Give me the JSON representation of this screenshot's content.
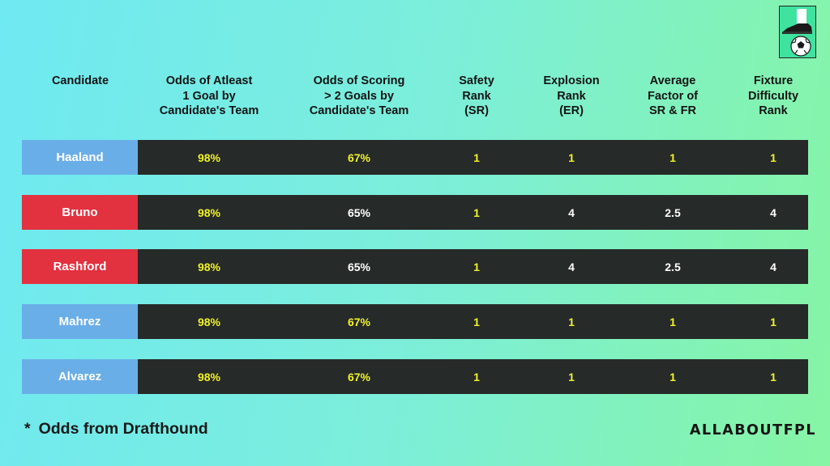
{
  "headers": [
    "Candidate",
    "Odds of Atleast\n1 Goal by\nCandidate's Team",
    "Odds of Scoring\n> 2 Goals by\nCandidate's Team",
    "Safety\nRank\n(SR)",
    "Explosion\nRank\n(ER)",
    "Average\nFactor of\nSR & FR",
    "Fixture\nDifficulty\nRank"
  ],
  "rows": [
    {
      "name": "Haaland",
      "name_color": "blue",
      "odds1": "98%",
      "odds2": "67%",
      "odds2_color": "yellow",
      "sr": "1",
      "sr_color": "yellow",
      "er": "1",
      "er_color": "yellow",
      "avg": "1",
      "avg_color": "yellow",
      "fdr": "1",
      "fdr_color": "yellow"
    },
    {
      "name": "Bruno",
      "name_color": "red",
      "odds1": "98%",
      "odds2": "65%",
      "odds2_color": "white",
      "sr": "1",
      "sr_color": "yellow",
      "er": "4",
      "er_color": "white",
      "avg": "2.5",
      "avg_color": "white",
      "fdr": "4",
      "fdr_color": "white"
    },
    {
      "name": "Rashford",
      "name_color": "red",
      "odds1": "98%",
      "odds2": "65%",
      "odds2_color": "white",
      "sr": "1",
      "sr_color": "yellow",
      "er": "4",
      "er_color": "white",
      "avg": "2.5",
      "avg_color": "white",
      "fdr": "4",
      "fdr_color": "white"
    },
    {
      "name": "Mahrez",
      "name_color": "blue",
      "odds1": "98%",
      "odds2": "67%",
      "odds2_color": "yellow",
      "sr": "1",
      "sr_color": "yellow",
      "er": "1",
      "er_color": "yellow",
      "avg": "1",
      "avg_color": "yellow",
      "fdr": "1",
      "fdr_color": "yellow"
    },
    {
      "name": "Alvarez",
      "name_color": "blue",
      "odds1": "98%",
      "odds2": "67%",
      "odds2_color": "yellow",
      "sr": "1",
      "sr_color": "yellow",
      "er": "1",
      "er_color": "yellow",
      "avg": "1",
      "avg_color": "yellow",
      "fdr": "1",
      "fdr_color": "yellow"
    }
  ],
  "footnote": {
    "star": "*",
    "text": "Odds from Drafthound"
  },
  "brand": "ALLABOUTFPL",
  "logo_icon": "football-boot-and-ball-icon",
  "colors": {
    "blue_name": "#6aaee8",
    "red_name": "#e2313f",
    "bar": "#262a28",
    "yellow": "#f1f22a",
    "white": "#ffffff"
  }
}
